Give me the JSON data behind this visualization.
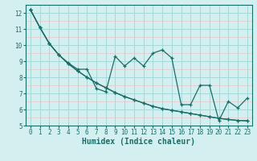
{
  "xlabel": "Humidex (Indice chaleur)",
  "ylabel": "",
  "bg_color": "#d4efef",
  "plot_bg_color": "#d4efef",
  "grid_color_major": "#a8d8d8",
  "grid_color_minor": "#e8c8c8",
  "line_color": "#1a6e6a",
  "spine_color": "#1a6e6a",
  "tick_color": "#1a6e6a",
  "xlim": [
    -0.5,
    23.5
  ],
  "ylim": [
    5,
    12.5
  ],
  "yticks": [
    5,
    6,
    7,
    8,
    9,
    10,
    11,
    12
  ],
  "xticks": [
    0,
    1,
    2,
    3,
    4,
    5,
    6,
    7,
    8,
    9,
    10,
    11,
    12,
    13,
    14,
    15,
    16,
    17,
    18,
    19,
    20,
    21,
    22,
    23
  ],
  "series1_x": [
    0,
    1,
    2,
    3,
    4,
    5,
    6,
    7,
    8,
    9,
    10,
    11,
    12,
    13,
    14,
    15,
    16,
    17,
    18,
    19,
    20,
    21,
    22,
    23
  ],
  "series1_y": [
    12.2,
    11.1,
    10.1,
    9.4,
    8.9,
    8.5,
    8.5,
    7.3,
    7.1,
    9.3,
    8.7,
    9.2,
    8.7,
    9.5,
    9.7,
    9.2,
    6.3,
    6.3,
    7.5,
    7.5,
    5.3,
    6.5,
    6.1,
    6.7
  ],
  "series2_x": [
    0,
    1,
    2,
    3,
    4,
    5,
    6,
    7,
    8,
    9,
    10,
    11,
    12,
    13,
    14,
    15,
    16,
    17,
    18,
    19,
    20,
    21,
    22,
    23
  ],
  "series2_y": [
    12.2,
    11.1,
    10.1,
    9.4,
    8.85,
    8.4,
    8.0,
    7.65,
    7.35,
    7.05,
    6.8,
    6.6,
    6.4,
    6.2,
    6.05,
    5.95,
    5.85,
    5.75,
    5.65,
    5.55,
    5.45,
    5.38,
    5.32,
    5.3
  ],
  "series3_x": [
    0,
    1,
    2,
    3,
    4,
    5,
    6,
    7,
    8,
    9,
    10,
    11,
    12,
    13,
    14,
    15,
    16,
    17,
    18,
    19,
    20,
    21,
    22,
    23
  ],
  "series3_y": [
    12.2,
    11.1,
    10.1,
    9.4,
    8.85,
    8.4,
    8.0,
    7.65,
    7.35,
    7.05,
    6.8,
    6.6,
    6.4,
    6.2,
    6.05,
    5.95,
    5.85,
    5.75,
    5.65,
    5.55,
    5.45,
    5.38,
    5.32,
    5.3
  ]
}
